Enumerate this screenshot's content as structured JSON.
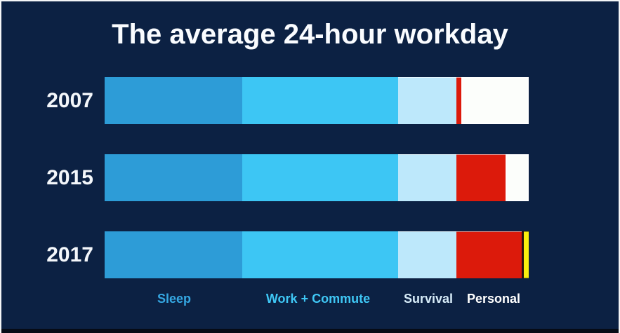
{
  "title": "The average 24-hour workday",
  "colors": {
    "background": "#0c2143",
    "frame_border": "#f5f6f7",
    "bottom_band": "#060b16",
    "title_text": "#fafcff",
    "year_text": "#f4f7fb",
    "sleep_blue": "#2d9cd7",
    "work_commute_blue": "#3dc6f4",
    "survival_pale_blue": "#bde8fb",
    "red_block": "#dc1a0b",
    "personal_white": "#fcfefb",
    "personal_yellow": "#f9ee0e"
  },
  "chart_data": {
    "type": "bar",
    "orientation": "horizontal",
    "stacked": true,
    "title": "The average 24-hour workday",
    "unit": "hours",
    "axis_total": 24,
    "grid": false,
    "axes_shown": false,
    "legend_position": "bottom",
    "categories": [
      "2007",
      "2015",
      "2017"
    ],
    "legend": [
      {
        "label": "Sleep",
        "color": "#35a7e2"
      },
      {
        "label": "Work + Commute",
        "color": "#3fc7f5"
      },
      {
        "label": "Survival",
        "color": "#d6ebf8"
      },
      {
        "label": "Personal",
        "color": "#ffffff"
      }
    ],
    "series": [
      {
        "name": "Sleep",
        "color": "#2d9cd7",
        "values": [
          7.8,
          7.8,
          7.8
        ]
      },
      {
        "name": "Work + Commute",
        "color": "#3dc6f4",
        "values": [
          8.8,
          8.8,
          8.8
        ]
      },
      {
        "name": "Survival",
        "color": "#bde8fb",
        "values": [
          3.3,
          3.3,
          3.3
        ]
      },
      {
        "name": "Unlabeled red block",
        "color": "#dc1a0b",
        "values": [
          0.3,
          2.8,
          3.7
        ]
      },
      {
        "name": "Personal (white)",
        "color": "#fcfefb",
        "values": [
          3.8,
          1.3,
          0
        ]
      },
      {
        "name": "Personal remainder (yellow)",
        "color": "#f9ee0e",
        "values": [
          0,
          0,
          0.4
        ]
      }
    ],
    "rows": [
      {
        "year": "2007",
        "segments": [
          {
            "label": "Sleep",
            "hours": 7.8,
            "key": "sleep",
            "color": "#2d9cd7"
          },
          {
            "label": "Work + Commute",
            "hours": 8.8,
            "key": "work",
            "color": "#3dc6f4"
          },
          {
            "label": "Survival",
            "hours": 3.3,
            "key": "survival",
            "color": "#bde8fb"
          },
          {
            "label": "Unlabeled red block",
            "hours": 0.3,
            "key": "red",
            "color": "#dc1a0b"
          },
          {
            "label": "Personal",
            "hours": 3.8,
            "key": "white",
            "color": "#fcfefb"
          }
        ]
      },
      {
        "year": "2015",
        "segments": [
          {
            "label": "Sleep",
            "hours": 7.8,
            "key": "sleep",
            "color": "#2d9cd7"
          },
          {
            "label": "Work + Commute",
            "hours": 8.8,
            "key": "work",
            "color": "#3dc6f4"
          },
          {
            "label": "Survival",
            "hours": 3.3,
            "key": "survival",
            "color": "#bde8fb"
          },
          {
            "label": "Unlabeled red block",
            "hours": 2.8,
            "key": "red",
            "color": "#dc1a0b"
          },
          {
            "label": "Personal",
            "hours": 1.3,
            "key": "white",
            "color": "#fcfefb"
          }
        ]
      },
      {
        "year": "2017",
        "segments": [
          {
            "label": "Sleep",
            "hours": 7.8,
            "key": "sleep",
            "color": "#2d9cd7"
          },
          {
            "label": "Work + Commute",
            "hours": 8.8,
            "key": "work",
            "color": "#3dc6f4"
          },
          {
            "label": "Survival",
            "hours": 3.3,
            "key": "survival",
            "color": "#bde8fb"
          },
          {
            "label": "Unlabeled red block",
            "hours": 3.7,
            "key": "red",
            "color": "#dc1a0b"
          },
          {
            "label": "Personal remainder",
            "hours": 0.4,
            "key": "yellow",
            "color": "#f9ee0e"
          }
        ]
      }
    ]
  }
}
